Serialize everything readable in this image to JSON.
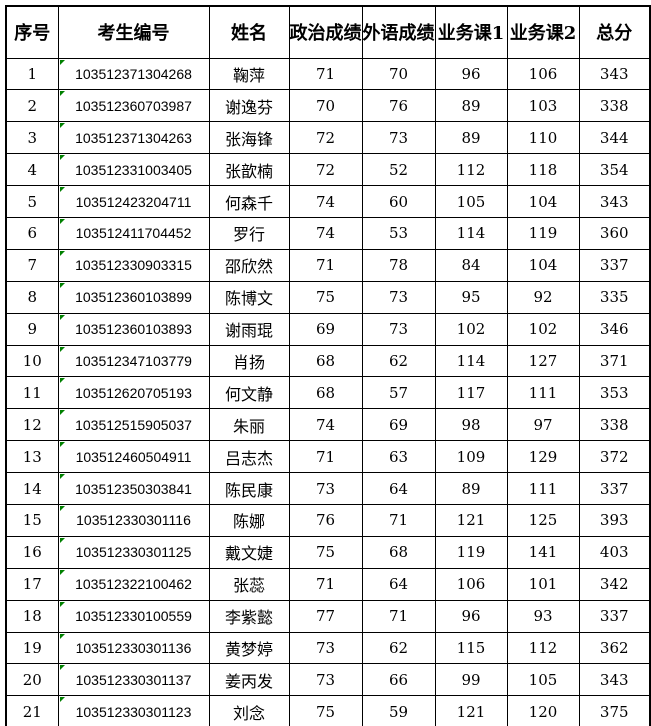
{
  "colors": {
    "border": "#000000",
    "background": "#ffffff",
    "text": "#000000",
    "stored_as_text_indicator": "#008000"
  },
  "table": {
    "columns": [
      {
        "key": "index",
        "label": "序号"
      },
      {
        "key": "id",
        "label": "考生编号"
      },
      {
        "key": "name",
        "label": "姓名"
      },
      {
        "key": "politics",
        "label": "政治成绩"
      },
      {
        "key": "foreign",
        "label": "外语成绩"
      },
      {
        "key": "course1",
        "label": "业务课1"
      },
      {
        "key": "course2",
        "label": "业务课2"
      },
      {
        "key": "total",
        "label": "总分"
      }
    ],
    "rows": [
      {
        "index": "1",
        "id": "103512371304268",
        "name": "鞠萍",
        "politics": "71",
        "foreign": "70",
        "course1": "96",
        "course2": "106",
        "total": "343"
      },
      {
        "index": "2",
        "id": "103512360703987",
        "name": "谢逸芬",
        "politics": "70",
        "foreign": "76",
        "course1": "89",
        "course2": "103",
        "total": "338"
      },
      {
        "index": "3",
        "id": "103512371304263",
        "name": "张海锋",
        "politics": "72",
        "foreign": "73",
        "course1": "89",
        "course2": "110",
        "total": "344"
      },
      {
        "index": "4",
        "id": "103512331003405",
        "name": "张歆楠",
        "politics": "72",
        "foreign": "52",
        "course1": "112",
        "course2": "118",
        "total": "354"
      },
      {
        "index": "5",
        "id": "103512423204711",
        "name": "何森千",
        "politics": "74",
        "foreign": "60",
        "course1": "105",
        "course2": "104",
        "total": "343"
      },
      {
        "index": "6",
        "id": "103512411704452",
        "name": "罗行",
        "politics": "74",
        "foreign": "53",
        "course1": "114",
        "course2": "119",
        "total": "360"
      },
      {
        "index": "7",
        "id": "103512330903315",
        "name": "邵欣然",
        "politics": "71",
        "foreign": "78",
        "course1": "84",
        "course2": "104",
        "total": "337"
      },
      {
        "index": "8",
        "id": "103512360103899",
        "name": "陈博文",
        "politics": "75",
        "foreign": "73",
        "course1": "95",
        "course2": "92",
        "total": "335"
      },
      {
        "index": "9",
        "id": "103512360103893",
        "name": "谢雨琨",
        "politics": "69",
        "foreign": "73",
        "course1": "102",
        "course2": "102",
        "total": "346"
      },
      {
        "index": "10",
        "id": "103512347103779",
        "name": "肖扬",
        "politics": "68",
        "foreign": "62",
        "course1": "114",
        "course2": "127",
        "total": "371"
      },
      {
        "index": "11",
        "id": "103512620705193",
        "name": "何文静",
        "politics": "68",
        "foreign": "57",
        "course1": "117",
        "course2": "111",
        "total": "353"
      },
      {
        "index": "12",
        "id": "103512515905037",
        "name": "朱丽",
        "politics": "74",
        "foreign": "69",
        "course1": "98",
        "course2": "97",
        "total": "338"
      },
      {
        "index": "13",
        "id": "103512460504911",
        "name": "吕志杰",
        "politics": "71",
        "foreign": "63",
        "course1": "109",
        "course2": "129",
        "total": "372"
      },
      {
        "index": "14",
        "id": "103512350303841",
        "name": "陈民康",
        "politics": "73",
        "foreign": "64",
        "course1": "89",
        "course2": "111",
        "total": "337"
      },
      {
        "index": "15",
        "id": "103512330301116",
        "name": "陈娜",
        "politics": "76",
        "foreign": "71",
        "course1": "121",
        "course2": "125",
        "total": "393"
      },
      {
        "index": "16",
        "id": "103512330301125",
        "name": "戴文婕",
        "politics": "75",
        "foreign": "68",
        "course1": "119",
        "course2": "141",
        "total": "403"
      },
      {
        "index": "17",
        "id": "103512322100462",
        "name": "张蕊",
        "politics": "71",
        "foreign": "64",
        "course1": "106",
        "course2": "101",
        "total": "342"
      },
      {
        "index": "18",
        "id": "103512330100559",
        "name": "李紫懿",
        "politics": "77",
        "foreign": "71",
        "course1": "96",
        "course2": "93",
        "total": "337"
      },
      {
        "index": "19",
        "id": "103512330301136",
        "name": "黄梦婷",
        "politics": "73",
        "foreign": "62",
        "course1": "115",
        "course2": "112",
        "total": "362"
      },
      {
        "index": "20",
        "id": "103512330301137",
        "name": "姜丙发",
        "politics": "73",
        "foreign": "66",
        "course1": "99",
        "course2": "105",
        "total": "343"
      },
      {
        "index": "21",
        "id": "103512330301123",
        "name": "刘念",
        "politics": "75",
        "foreign": "59",
        "course1": "121",
        "course2": "120",
        "total": "375"
      }
    ]
  }
}
